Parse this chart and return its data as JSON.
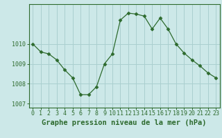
{
  "x": [
    0,
    1,
    2,
    3,
    4,
    5,
    6,
    7,
    8,
    9,
    10,
    11,
    12,
    13,
    14,
    15,
    16,
    17,
    18,
    19,
    20,
    21,
    22,
    23
  ],
  "y": [
    1010.0,
    1009.6,
    1009.5,
    1009.2,
    1008.7,
    1008.3,
    1007.45,
    1007.45,
    1007.85,
    1009.0,
    1009.5,
    1011.2,
    1011.55,
    1011.5,
    1011.4,
    1010.75,
    1011.3,
    1010.75,
    1010.0,
    1009.55,
    1009.2,
    1008.9,
    1008.55,
    1008.3
  ],
  "line_color": "#2d6a2d",
  "marker": "D",
  "marker_size": 2.5,
  "bg_color": "#cce8e8",
  "grid_color": "#aacfcf",
  "title": "Graphe pression niveau de la mer (hPa)",
  "ylim": [
    1006.8,
    1012.0
  ],
  "yticks": [
    1007,
    1008,
    1009,
    1010
  ],
  "xtick_labels": [
    "0",
    "1",
    "2",
    "3",
    "4",
    "5",
    "6",
    "7",
    "8",
    "9",
    "10",
    "11",
    "12",
    "13",
    "14",
    "15",
    "16",
    "17",
    "18",
    "19",
    "20",
    "21",
    "22",
    "23"
  ],
  "title_fontsize": 7.5,
  "tick_fontsize": 6.0,
  "text_color": "#2d6a2d",
  "spine_color": "#2d6a2d"
}
